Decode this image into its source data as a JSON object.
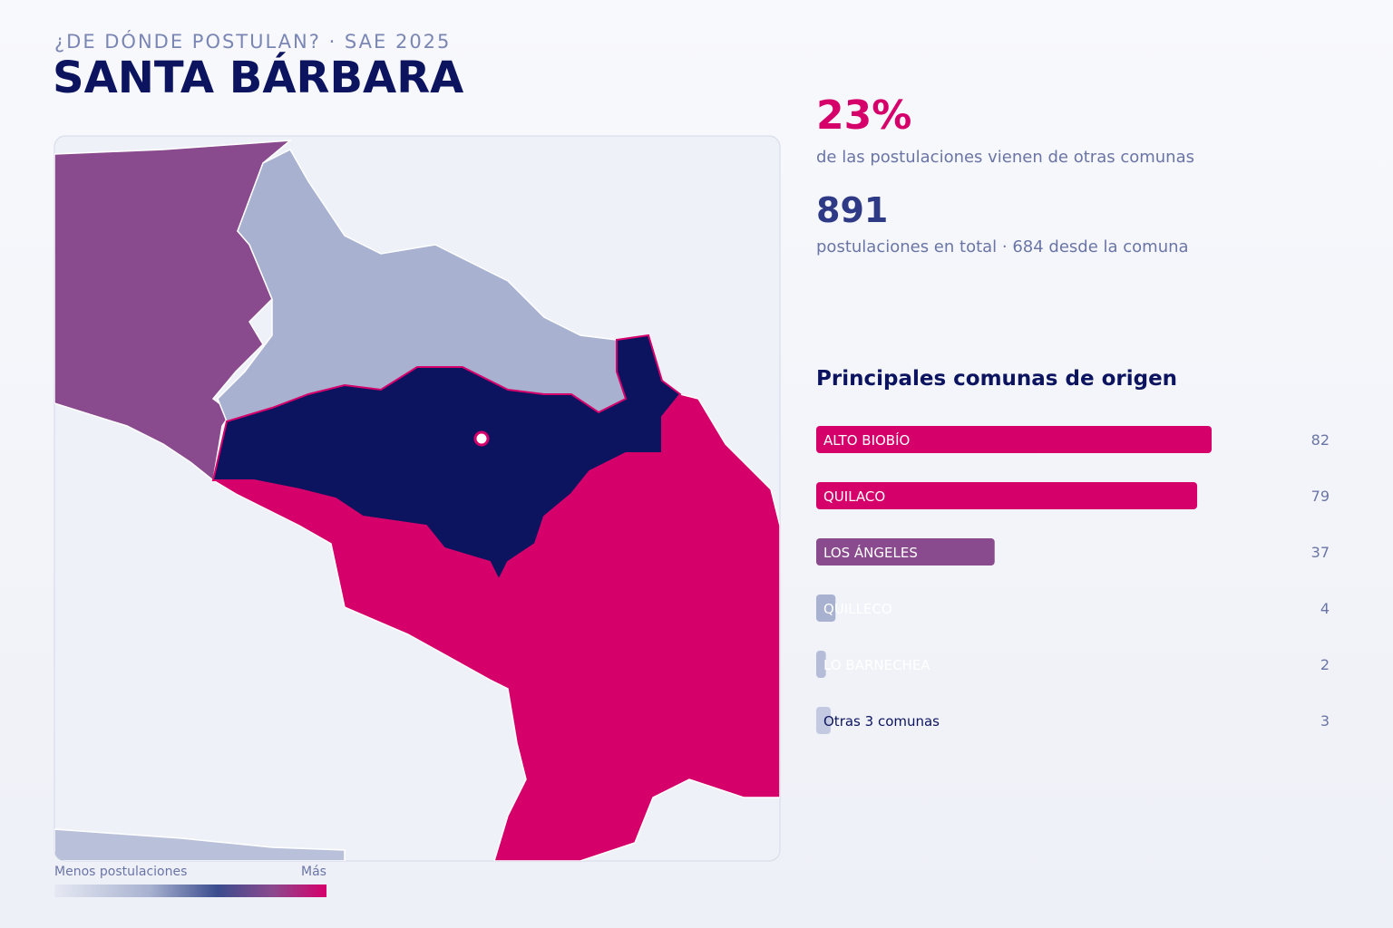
{
  "header": {
    "kicker": "¿DE DÓNDE POSTULAN? · SAE 2025",
    "title": "SANTA BÁRBARA"
  },
  "stats": [
    {
      "value": "23%",
      "text": "de las postulaciones vienen de otras comunas"
    },
    {
      "value": "891",
      "text": "postulaciones en total · 684 desde la comuna"
    }
  ],
  "legend": {
    "low": "Menos postulaciones",
    "high": "Más"
  },
  "chart_data": {
    "type": "hbar",
    "title": "Principales comunas de origen",
    "categories": [
      "ALTO BIOBÍO",
      "QUILACO",
      "LOS ÁNGELES",
      "QUILLECO",
      "LO BARNECHEA",
      "Otras 3 comunas"
    ],
    "values": [
      82,
      79,
      37,
      4,
      2,
      3
    ],
    "colors": [
      "#d6006b",
      "#d6006b",
      "#8a4a8e",
      "#a8b2d0",
      "#b4bcd8",
      "#c3c9e0"
    ],
    "xlim": [
      0,
      82
    ]
  }
}
